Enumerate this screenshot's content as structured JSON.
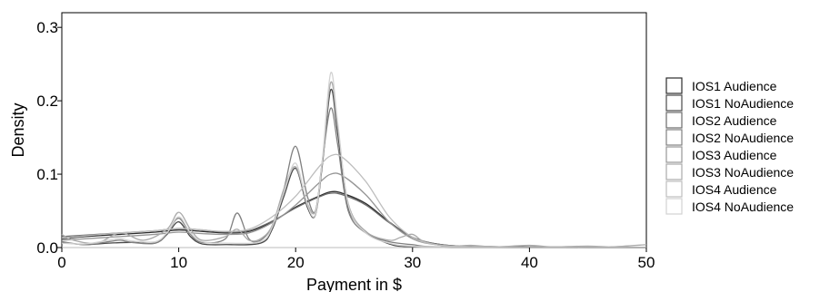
{
  "chart_data": {
    "type": "line",
    "title": "",
    "xlabel": "Payment in $",
    "ylabel": "Density",
    "xlim": [
      0,
      50
    ],
    "ylim": [
      0,
      0.32
    ],
    "x_ticks": [
      "0",
      "10",
      "20",
      "30",
      "40",
      "50"
    ],
    "y_ticks": [
      "0.0",
      "0.1",
      "0.2",
      "0.3"
    ],
    "x_tick_values": [
      0,
      10,
      20,
      30,
      40,
      50
    ],
    "y_tick_values": [
      0.0,
      0.1,
      0.2,
      0.3
    ],
    "grid": false,
    "legend_position": "right",
    "series": [
      {
        "name": "IOS1 Audience",
        "color": "#2b2b2b",
        "points": [
          [
            0,
            0.012
          ],
          [
            2,
            0.015
          ],
          [
            5,
            0.018
          ],
          [
            8,
            0.021
          ],
          [
            10,
            0.024
          ],
          [
            12,
            0.022
          ],
          [
            14,
            0.02
          ],
          [
            16,
            0.022
          ],
          [
            18,
            0.035
          ],
          [
            20,
            0.055
          ],
          [
            22,
            0.07
          ],
          [
            23,
            0.076
          ],
          [
            24,
            0.074
          ],
          [
            26,
            0.06
          ],
          [
            28,
            0.035
          ],
          [
            30,
            0.014
          ],
          [
            32,
            0.005
          ],
          [
            34,
            0.002
          ],
          [
            38,
            0.001
          ],
          [
            45,
            0.0
          ],
          [
            50,
            0.0
          ]
        ]
      },
      {
        "name": "IOS1 NoAudience",
        "color": "#4a4a4a",
        "points": [
          [
            0,
            0.007
          ],
          [
            2,
            0.004
          ],
          [
            4,
            0.006
          ],
          [
            6,
            0.007
          ],
          [
            8,
            0.006
          ],
          [
            9,
            0.018
          ],
          [
            10,
            0.035
          ],
          [
            11,
            0.015
          ],
          [
            12,
            0.005
          ],
          [
            14,
            0.004
          ],
          [
            17,
            0.006
          ],
          [
            18,
            0.025
          ],
          [
            19,
            0.07
          ],
          [
            20,
            0.108
          ],
          [
            21,
            0.055
          ],
          [
            21.7,
            0.045
          ],
          [
            22.3,
            0.115
          ],
          [
            23,
            0.215
          ],
          [
            23.6,
            0.155
          ],
          [
            24.5,
            0.055
          ],
          [
            26,
            0.022
          ],
          [
            28,
            0.005
          ],
          [
            30,
            0.001
          ],
          [
            35,
            0.0
          ],
          [
            40,
            0.0
          ],
          [
            50,
            0.0
          ]
        ]
      },
      {
        "name": "IOS2 Audience",
        "color": "#6a6a6a",
        "points": [
          [
            0,
            0.015
          ],
          [
            2,
            0.017
          ],
          [
            5,
            0.02
          ],
          [
            8,
            0.023
          ],
          [
            10,
            0.026
          ],
          [
            12,
            0.024
          ],
          [
            14,
            0.021
          ],
          [
            16,
            0.023
          ],
          [
            18,
            0.036
          ],
          [
            20,
            0.054
          ],
          [
            22,
            0.069
          ],
          [
            23,
            0.074
          ],
          [
            24,
            0.072
          ],
          [
            26,
            0.058
          ],
          [
            28,
            0.034
          ],
          [
            30,
            0.014
          ],
          [
            32,
            0.005
          ],
          [
            34,
            0.002
          ],
          [
            38,
            0.001
          ],
          [
            45,
            0.0
          ],
          [
            50,
            0.0
          ]
        ]
      },
      {
        "name": "IOS2 NoAudience",
        "color": "#808080",
        "points": [
          [
            0,
            0.008
          ],
          [
            2,
            0.004
          ],
          [
            4,
            0.008
          ],
          [
            5,
            0.01
          ],
          [
            6,
            0.007
          ],
          [
            8,
            0.006
          ],
          [
            9,
            0.02
          ],
          [
            10,
            0.04
          ],
          [
            11,
            0.018
          ],
          [
            12,
            0.007
          ],
          [
            14,
            0.012
          ],
          [
            15,
            0.047
          ],
          [
            16,
            0.012
          ],
          [
            17,
            0.01
          ],
          [
            18,
            0.03
          ],
          [
            19,
            0.08
          ],
          [
            20,
            0.138
          ],
          [
            21,
            0.07
          ],
          [
            21.7,
            0.05
          ],
          [
            22.3,
            0.12
          ],
          [
            23,
            0.19
          ],
          [
            23.6,
            0.14
          ],
          [
            24.5,
            0.05
          ],
          [
            26,
            0.02
          ],
          [
            28,
            0.008
          ],
          [
            30,
            0.004
          ],
          [
            32,
            0.001
          ],
          [
            40,
            0.0
          ],
          [
            50,
            0.0
          ]
        ]
      },
      {
        "name": "IOS3 Audience",
        "color": "#969696",
        "points": [
          [
            0,
            0.01
          ],
          [
            2,
            0.012
          ],
          [
            5,
            0.015
          ],
          [
            8,
            0.018
          ],
          [
            10,
            0.021
          ],
          [
            12,
            0.019
          ],
          [
            14,
            0.018
          ],
          [
            16,
            0.02
          ],
          [
            18,
            0.034
          ],
          [
            20,
            0.058
          ],
          [
            22,
            0.088
          ],
          [
            23,
            0.1
          ],
          [
            24,
            0.098
          ],
          [
            26,
            0.072
          ],
          [
            28,
            0.035
          ],
          [
            30,
            0.012
          ],
          [
            32,
            0.004
          ],
          [
            35,
            0.001
          ],
          [
            40,
            0.0
          ],
          [
            50,
            0.0
          ]
        ]
      },
      {
        "name": "IOS3 NoAudience",
        "color": "#aaaaaa",
        "points": [
          [
            0,
            0.018
          ],
          [
            1,
            0.01
          ],
          [
            3,
            0.006
          ],
          [
            5,
            0.02
          ],
          [
            7,
            0.01
          ],
          [
            9,
            0.025
          ],
          [
            10,
            0.048
          ],
          [
            11,
            0.025
          ],
          [
            12,
            0.01
          ],
          [
            14,
            0.015
          ],
          [
            15,
            0.025
          ],
          [
            16,
            0.01
          ],
          [
            17,
            0.012
          ],
          [
            18,
            0.03
          ],
          [
            19,
            0.08
          ],
          [
            20,
            0.11
          ],
          [
            21,
            0.06
          ],
          [
            21.7,
            0.05
          ],
          [
            22.3,
            0.12
          ],
          [
            23,
            0.225
          ],
          [
            23.6,
            0.165
          ],
          [
            24.5,
            0.06
          ],
          [
            26,
            0.022
          ],
          [
            28,
            0.01
          ],
          [
            29,
            0.014
          ],
          [
            30,
            0.018
          ],
          [
            31,
            0.008
          ],
          [
            33,
            0.002
          ],
          [
            35,
            0.003
          ],
          [
            37,
            0.001
          ],
          [
            40,
            0.003
          ],
          [
            42,
            0.001
          ],
          [
            45,
            0.002
          ],
          [
            47,
            0.001
          ],
          [
            50,
            0.004
          ]
        ]
      },
      {
        "name": "IOS4 Audience",
        "color": "#bdbdbd",
        "points": [
          [
            0,
            0.013
          ],
          [
            2,
            0.016
          ],
          [
            5,
            0.02
          ],
          [
            8,
            0.023
          ],
          [
            10,
            0.026
          ],
          [
            12,
            0.024
          ],
          [
            14,
            0.022
          ],
          [
            16,
            0.025
          ],
          [
            18,
            0.042
          ],
          [
            20,
            0.07
          ],
          [
            22,
            0.11
          ],
          [
            23,
            0.125
          ],
          [
            24,
            0.123
          ],
          [
            26,
            0.09
          ],
          [
            28,
            0.042
          ],
          [
            30,
            0.014
          ],
          [
            32,
            0.004
          ],
          [
            35,
            0.001
          ],
          [
            40,
            0.0
          ],
          [
            50,
            0.0
          ]
        ]
      },
      {
        "name": "IOS4 NoAudience",
        "color": "#d2d2d2",
        "points": [
          [
            0,
            0.006
          ],
          [
            2,
            0.005
          ],
          [
            4,
            0.01
          ],
          [
            5,
            0.012
          ],
          [
            6,
            0.009
          ],
          [
            8,
            0.008
          ],
          [
            9,
            0.02
          ],
          [
            10,
            0.042
          ],
          [
            11,
            0.02
          ],
          [
            12,
            0.008
          ],
          [
            14,
            0.006
          ],
          [
            17,
            0.008
          ],
          [
            18,
            0.028
          ],
          [
            19,
            0.075
          ],
          [
            20,
            0.115
          ],
          [
            21,
            0.058
          ],
          [
            21.7,
            0.046
          ],
          [
            22.3,
            0.122
          ],
          [
            23,
            0.238
          ],
          [
            23.6,
            0.17
          ],
          [
            24.5,
            0.058
          ],
          [
            26,
            0.02
          ],
          [
            28,
            0.006
          ],
          [
            30,
            0.002
          ],
          [
            35,
            0.0
          ],
          [
            40,
            0.0
          ],
          [
            50,
            0.0
          ]
        ]
      }
    ]
  }
}
